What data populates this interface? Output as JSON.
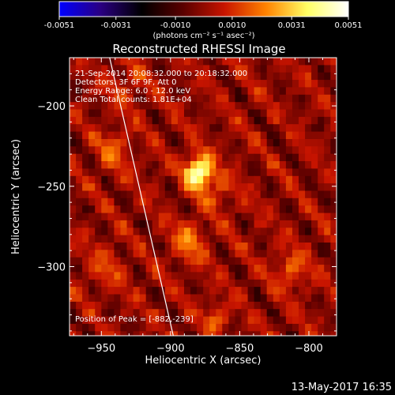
{
  "colorbar": {
    "tick_labels": [
      "-0.0051",
      "-0.0031",
      "-0.0010",
      "0.0010",
      "0.0031",
      "0.0051"
    ],
    "tick_values": [
      -0.0051,
      -0.0031,
      -0.001,
      0.001,
      0.0031,
      0.0051
    ],
    "range": [
      -0.0051,
      0.0051
    ],
    "units_label": "(photons cm⁻² s⁻¹ asec⁻²)",
    "colormap": [
      "#0000ff",
      "#2a0082",
      "#000000",
      "#5a0000",
      "#c81400",
      "#ff8200",
      "#ffff64",
      "#ffffff"
    ]
  },
  "chart_data": {
    "type": "heatmap",
    "title": "Reconstructed RHESSI Image",
    "xlabel": "Heliocentric X (arcsec)",
    "ylabel": "Heliocentric Y (arcsec)",
    "xlim": [
      -973,
      -780
    ],
    "ylim": [
      -343,
      -170
    ],
    "x_tick_values": [
      -950,
      -900,
      -850,
      -800
    ],
    "x_tick_labels": [
      "−950",
      "−900",
      "−850",
      "−800"
    ],
    "y_tick_values": [
      -200,
      -250,
      -300
    ],
    "y_tick_labels": [
      "−200",
      "−250",
      "−300"
    ],
    "info_lines": [
      "21-Sep-2014 20:08:32.000 to 20:18:32.000",
      "Detectors: 3F 6F 9F, Att 0",
      "Energy Range: 6.0 - 12.0 keV",
      "Clean     Total counts: 1.81E+04"
    ],
    "peak_label": "Position of Peak = [-882,-239]",
    "peak": [
      -882,
      -239
    ],
    "grid": false,
    "limb_line": [
      [
        -944,
        -170
      ],
      [
        -898,
        -343
      ]
    ],
    "sources": [
      {
        "x": -882,
        "y": -239,
        "amp": 0.0051,
        "sigma": 7
      },
      {
        "x": -889,
        "y": -282,
        "amp": 0.0018,
        "sigma": 9
      },
      {
        "x": -868,
        "y": -252,
        "amp": 0.0012,
        "sigma": 8
      },
      {
        "x": -815,
        "y": -300,
        "amp": 0.0016,
        "sigma": 8
      },
      {
        "x": -944,
        "y": -225,
        "amp": 0.0014,
        "sigma": 9
      },
      {
        "x": -869,
        "y": -330,
        "amp": 0.0017,
        "sigma": 6
      },
      {
        "x": -950,
        "y": -300,
        "amp": 0.001,
        "sigma": 10
      },
      {
        "x": -935,
        "y": -185,
        "amp": 0.001,
        "sigma": 9
      }
    ]
  },
  "footer": {
    "timestamp": "13-May-2017 16:35"
  }
}
